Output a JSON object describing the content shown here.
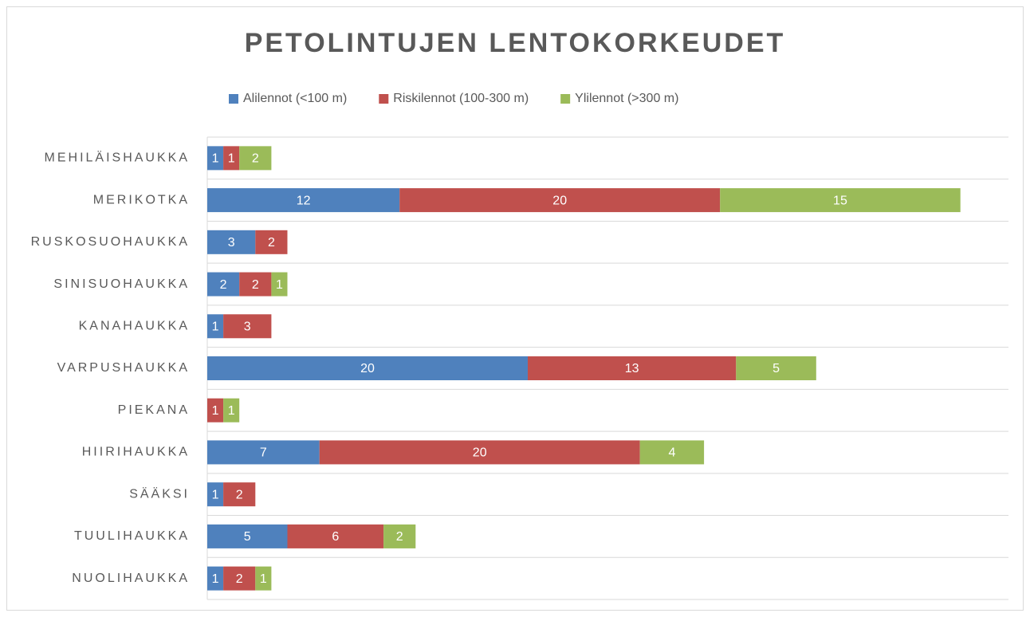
{
  "chart_data": {
    "type": "stacked-bar-horizontal",
    "title": "PETOLINTUJEN LENTOKORKEUDET",
    "categories": [
      "MEHILÄISHAUKKA",
      "MERIKOTKA",
      "RUSKOSUOHAUKKA",
      "SINISUOHAUKKA",
      "KANAHAUKKA",
      "VARPUSHAUKKA",
      "PIEKANA",
      "HIIRIHAUKKA",
      "SÄÄKSI",
      "TUULIHAUKKA",
      "NUOLIHAUKKA"
    ],
    "series": [
      {
        "name": "Alilennot (<100 m)",
        "color": "#4f81bd",
        "values": [
          1,
          12,
          3,
          2,
          1,
          20,
          null,
          7,
          1,
          5,
          1
        ]
      },
      {
        "name": "Riskilennot (100-300 m)",
        "color": "#c0504d",
        "values": [
          1,
          20,
          2,
          2,
          3,
          13,
          1,
          20,
          2,
          6,
          2
        ]
      },
      {
        "name": "Ylilennot (>300 m)",
        "color": "#9bbb59",
        "values": [
          2,
          15,
          null,
          1,
          null,
          5,
          1,
          4,
          null,
          2,
          1
        ]
      }
    ],
    "xlim": [
      0,
      50
    ],
    "legend": "top"
  }
}
